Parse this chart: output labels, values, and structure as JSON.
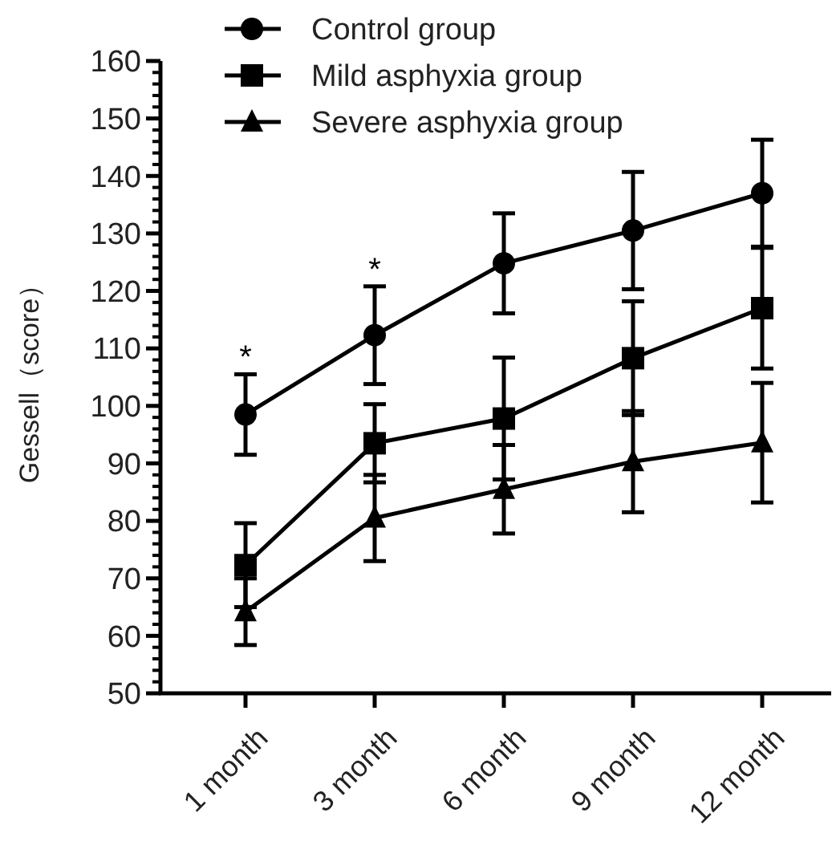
{
  "chart_data": {
    "type": "line",
    "ylabel": "Gessell（score）",
    "categories": [
      "1 month",
      "3 month",
      "6 month",
      "9 month",
      "12 month"
    ],
    "series": [
      {
        "name": "Control group",
        "color": "#000000",
        "marker": "circle",
        "values": [
          98.5,
          112.3,
          124.8,
          130.5,
          137
        ],
        "errors": [
          7,
          8.5,
          8.7,
          10.2,
          9.3
        ]
      },
      {
        "name": "Mild asphyxia group",
        "color": "#000000",
        "marker": "square",
        "values": [
          72.3,
          93.5,
          97.8,
          108.3,
          117
        ],
        "errors": [
          7.3,
          6.8,
          10.6,
          9.9,
          10.5
        ]
      },
      {
        "name": "Severe asphyxia group",
        "color": "#000000",
        "marker": "triangle",
        "values": [
          64.2,
          80.5,
          85.5,
          90.3,
          93.6
        ],
        "errors": [
          5.8,
          7.5,
          7.7,
          8.8,
          10.4
        ]
      }
    ],
    "ylim": [
      50,
      160
    ],
    "yticks": [
      50,
      60,
      70,
      80,
      90,
      100,
      110,
      120,
      130,
      140,
      150,
      160
    ],
    "annotations": [
      "*",
      "*"
    ],
    "legend": "top",
    "grid": false,
    "line_style": "solid"
  }
}
